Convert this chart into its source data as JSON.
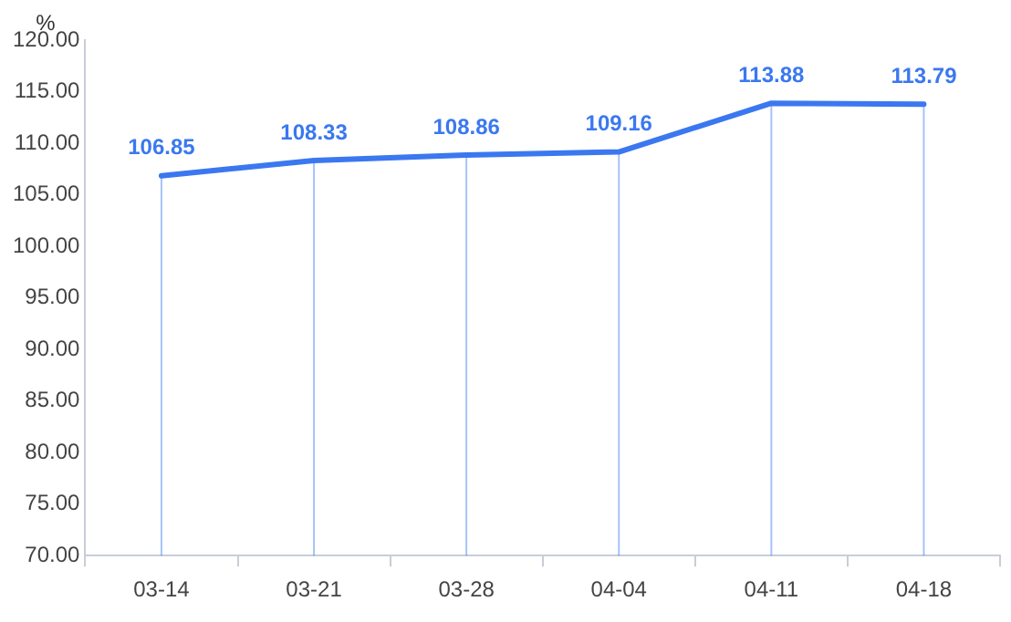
{
  "chart_data": {
    "type": "line",
    "ylabel": "%",
    "categories": [
      "03-14",
      "03-21",
      "03-28",
      "04-04",
      "04-11",
      "04-18"
    ],
    "series": [
      {
        "color": "#3b78f0",
        "values": [
          106.85,
          108.33,
          108.86,
          109.16,
          113.88,
          113.79
        ]
      }
    ],
    "ylim": [
      70,
      120
    ],
    "yticks": [
      {
        "value": 70,
        "label": "70.00"
      },
      {
        "value": 75,
        "label": "75.00"
      },
      {
        "value": 80,
        "label": "80.00"
      },
      {
        "value": 85,
        "label": "85.00"
      },
      {
        "value": 90,
        "label": "90.00"
      },
      {
        "value": 95,
        "label": "95.00"
      },
      {
        "value": 100,
        "label": "100.00"
      },
      {
        "value": 105,
        "label": "105.00"
      },
      {
        "value": 110,
        "label": "110.00"
      },
      {
        "value": 115,
        "label": "115.00"
      },
      {
        "value": 120,
        "label": "120.00"
      }
    ],
    "grid": "x",
    "legend": false,
    "marker": "none",
    "line_style": "solid",
    "data_labels": true
  }
}
